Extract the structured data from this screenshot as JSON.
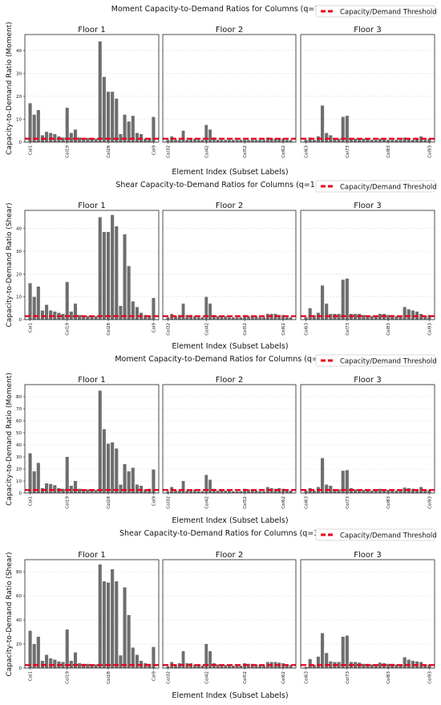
{
  "legend_label": "Capacity/Demand Threshold",
  "xlabel": "Element Index (Subset Labels)",
  "chart_data": [
    {
      "type": "bar",
      "title": "Moment Capacity-to-Demand Ratios for Columns (q=1.5)",
      "ylabel": "Capacity-to-Demand Ratio (Moment)",
      "threshold": 1.5,
      "ylim": [
        0,
        47
      ],
      "yticks": [
        0,
        10,
        20,
        30,
        40
      ],
      "panels": [
        {
          "title": "Floor 1",
          "values": [
            17,
            12,
            14,
            3,
            4.5,
            4,
            3.5,
            2.5,
            2,
            15,
            4,
            5.5,
            2,
            1.8,
            1.8,
            1.5,
            1.5,
            44,
            28.5,
            22,
            22,
            19,
            3.5,
            12,
            9,
            11.5,
            4,
            3.5,
            1.5,
            1.8,
            11
          ],
          "ticklabels": [
            {
              "i": 0,
              "text": "Col1"
            },
            {
              "i": 9,
              "text": "Col19"
            },
            {
              "i": 19,
              "text": "Col28"
            },
            {
              "i": 30,
              "text": "Col9"
            }
          ]
        },
        {
          "title": "Floor 2",
          "values": [
            1,
            2.5,
            1,
            1,
            5,
            1,
            1.5,
            1.5,
            1,
            1,
            7.5,
            5.5,
            2,
            1,
            1,
            1,
            1,
            1,
            1,
            1,
            1,
            1,
            1,
            1,
            1,
            1,
            2,
            1.5,
            1.5,
            1.5,
            1.5,
            1,
            1
          ],
          "ticklabels": [
            {
              "i": 0,
              "text": "Col32"
            },
            {
              "i": 10,
              "text": "Col42"
            },
            {
              "i": 20,
              "text": "Col52"
            },
            {
              "i": 30,
              "text": "Col62"
            }
          ]
        },
        {
          "title": "Floor 3",
          "values": [
            1,
            2,
            1,
            2.5,
            16,
            4,
            3,
            1.5,
            1.5,
            11,
            11.5,
            1.5,
            1.5,
            1.5,
            1.5,
            1.5,
            1,
            1,
            1.5,
            1.5,
            1,
            1,
            1,
            1,
            2,
            1.5,
            1,
            1.5,
            2.5,
            1,
            1.5
          ],
          "ticklabels": [
            {
              "i": 0,
              "text": "Col63"
            },
            {
              "i": 10,
              "text": "Col73"
            },
            {
              "i": 20,
              "text": "Col83"
            },
            {
              "i": 30,
              "text": "Col93"
            }
          ]
        }
      ]
    },
    {
      "type": "bar",
      "title": "Shear Capacity-to-Demand Ratios for Columns (q=1.5)",
      "ylabel": "Capacity-to-Demand Ratio (Shear)",
      "threshold": 1.5,
      "ylim": [
        0,
        48
      ],
      "yticks": [
        0,
        10,
        20,
        30,
        40
      ],
      "panels": [
        {
          "title": "Floor 1",
          "values": [
            16,
            10,
            14.5,
            4,
            6.5,
            4,
            3.5,
            3,
            2.5,
            16.5,
            3.5,
            7,
            2,
            1.5,
            1.5,
            1.5,
            1.5,
            45,
            38.5,
            38.5,
            46,
            41,
            6,
            37.5,
            23.5,
            8,
            5.5,
            3,
            2,
            1.8,
            9.5
          ],
          "ticklabels": [
            {
              "i": 0,
              "text": "Col1"
            },
            {
              "i": 9,
              "text": "Col19"
            },
            {
              "i": 19,
              "text": "Col28"
            },
            {
              "i": 30,
              "text": "Col9"
            }
          ]
        },
        {
          "title": "Floor 2",
          "values": [
            1,
            2.5,
            1.5,
            2,
            7,
            2,
            2,
            1.5,
            1,
            1,
            10,
            7,
            2,
            1.5,
            1.5,
            1.5,
            1,
            1,
            1,
            1,
            2,
            1.5,
            1.5,
            1.5,
            1,
            1,
            2.5,
            2.5,
            2.5,
            2,
            2,
            1,
            1
          ],
          "ticklabels": [
            {
              "i": 0,
              "text": "Col32"
            },
            {
              "i": 10,
              "text": "Col42"
            },
            {
              "i": 20,
              "text": "Col52"
            },
            {
              "i": 30,
              "text": "Col62"
            }
          ]
        },
        {
          "title": "Floor 3",
          "values": [
            1,
            5,
            2,
            3,
            15,
            7,
            2.5,
            2.5,
            2.5,
            17.5,
            18,
            2.5,
            2.5,
            2.5,
            2,
            1.5,
            1.5,
            1.5,
            2.5,
            2.5,
            2,
            2,
            1.5,
            1.5,
            5.5,
            4.5,
            4,
            3.5,
            2.5,
            1.5,
            2
          ],
          "ticklabels": [
            {
              "i": 0,
              "text": "Col63"
            },
            {
              "i": 10,
              "text": "Col73"
            },
            {
              "i": 20,
              "text": "Col83"
            },
            {
              "i": 30,
              "text": "Col93"
            }
          ]
        }
      ]
    },
    {
      "type": "bar",
      "title": "Moment Capacity-to-Demand Ratios for Columns (q=3)",
      "ylabel": "Capacity-to-Demand Ratio (Moment)",
      "threshold": 2.5,
      "ylim": [
        0,
        90
      ],
      "yticks": [
        0,
        10,
        20,
        30,
        40,
        50,
        60,
        70,
        80
      ],
      "panels": [
        {
          "title": "Floor 1",
          "values": [
            33,
            18,
            25,
            4,
            8,
            7.5,
            6.5,
            4,
            3.5,
            30,
            6,
            10,
            3.5,
            3,
            3,
            2.5,
            2.5,
            85,
            53,
            41,
            42,
            37,
            7,
            24,
            18,
            21,
            7,
            6,
            3,
            3.5,
            19.5
          ],
          "ticklabels": [
            {
              "i": 0,
              "text": "Col1"
            },
            {
              "i": 9,
              "text": "Col19"
            },
            {
              "i": 19,
              "text": "Col28"
            },
            {
              "i": 30,
              "text": "Col9"
            }
          ]
        },
        {
          "title": "Floor 2",
          "values": [
            1.5,
            5,
            2,
            2,
            10,
            2,
            2.5,
            3,
            1.5,
            1.5,
            15,
            11,
            3.5,
            2,
            2,
            2,
            2,
            1.5,
            1.5,
            1.5,
            3.5,
            3,
            3,
            2,
            1.5,
            1.5,
            5,
            4,
            3.5,
            4,
            3.5,
            2,
            2
          ],
          "ticklabels": [
            {
              "i": 0,
              "text": "Col32"
            },
            {
              "i": 10,
              "text": "Col42"
            },
            {
              "i": 20,
              "text": "Col52"
            },
            {
              "i": 30,
              "text": "Col62"
            }
          ]
        },
        {
          "title": "Floor 3",
          "values": [
            2,
            4,
            2,
            5,
            29,
            7,
            6,
            3,
            3,
            18.5,
            19,
            4,
            3,
            3,
            2.5,
            2.5,
            2,
            2,
            3.5,
            3,
            2.5,
            2.5,
            2,
            2,
            4.5,
            4,
            3.5,
            3,
            5,
            2.5,
            2.5
          ],
          "ticklabels": [
            {
              "i": 0,
              "text": "Col63"
            },
            {
              "i": 10,
              "text": "Col73"
            },
            {
              "i": 20,
              "text": "Col83"
            },
            {
              "i": 30,
              "text": "Col93"
            }
          ]
        }
      ]
    },
    {
      "type": "bar",
      "title": "Shear Capacity-to-Demand Ratios for Columns (q=3)",
      "ylabel": "Capacity-to-Demand Ratio (Shear)",
      "threshold": 2.5,
      "ylim": [
        0,
        90
      ],
      "yticks": [
        0,
        20,
        40,
        60,
        80
      ],
      "panels": [
        {
          "title": "Floor 1",
          "values": [
            31,
            20,
            26,
            6,
            11,
            8,
            7,
            5.5,
            5,
            32,
            6,
            13,
            4,
            3.5,
            3.5,
            3,
            3,
            86,
            72,
            71,
            82,
            72,
            10.5,
            67,
            44,
            17,
            11,
            6,
            4,
            3.5,
            17.5
          ],
          "ticklabels": [
            {
              "i": 0,
              "text": "Col1"
            },
            {
              "i": 9,
              "text": "Col19"
            },
            {
              "i": 19,
              "text": "Col28"
            },
            {
              "i": 30,
              "text": "Col9"
            }
          ]
        },
        {
          "title": "Floor 2",
          "values": [
            1.5,
            5,
            3,
            4,
            14,
            4,
            4,
            3,
            2,
            2,
            20,
            14,
            4,
            3,
            3,
            2.5,
            2,
            2,
            2,
            2,
            4,
            3.5,
            3.5,
            3,
            2,
            2,
            5,
            5,
            5,
            4.5,
            4,
            2.5,
            2.5
          ],
          "ticklabels": [
            {
              "i": 0,
              "text": "Col32"
            },
            {
              "i": 10,
              "text": "Col42"
            },
            {
              "i": 20,
              "text": "Col52"
            },
            {
              "i": 30,
              "text": "Col62"
            }
          ]
        },
        {
          "title": "Floor 3",
          "values": [
            1,
            7.5,
            2.5,
            9.5,
            29,
            12.5,
            5.5,
            5,
            5,
            26,
            27,
            5,
            5,
            4.5,
            3.5,
            3.5,
            3,
            3,
            4.5,
            4,
            3.5,
            3.5,
            3,
            3,
            9,
            7,
            6,
            5.5,
            5,
            3,
            3
          ],
          "ticklabels": [
            {
              "i": 0,
              "text": "Col63"
            },
            {
              "i": 10,
              "text": "Col73"
            },
            {
              "i": 20,
              "text": "Col83"
            },
            {
              "i": 30,
              "text": "Col93"
            }
          ]
        }
      ]
    }
  ]
}
